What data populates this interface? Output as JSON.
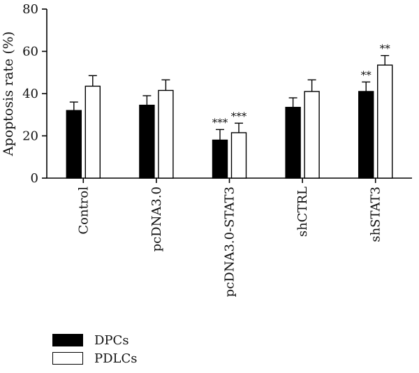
{
  "chart_data": {
    "type": "bar",
    "title": "",
    "xlabel": "",
    "ylabel": "Apoptosis rate (%)",
    "ylim": [
      0,
      80
    ],
    "yticks": [
      0,
      20,
      40,
      60,
      80
    ],
    "categories": [
      "Control",
      "pcDNA3.0",
      "pcDNA3.0-STAT3",
      "shCTRL",
      "shSTAT3"
    ],
    "series": [
      {
        "name": "DPCs",
        "color": "#000000",
        "values": [
          32,
          34.5,
          18,
          33.5,
          41
        ],
        "errors": [
          4,
          4.5,
          5,
          4.5,
          4.5
        ],
        "annotations": [
          "",
          "",
          "***",
          "",
          "**"
        ]
      },
      {
        "name": "PDLCs",
        "color": "#ffffff",
        "values": [
          43.5,
          41.5,
          21.5,
          41,
          53.5
        ],
        "errors": [
          5,
          5,
          4.5,
          5.5,
          4.5
        ],
        "annotations": [
          "",
          "",
          "***",
          "",
          "**"
        ]
      }
    ],
    "legend_position": "bottom-left",
    "grid": false
  }
}
